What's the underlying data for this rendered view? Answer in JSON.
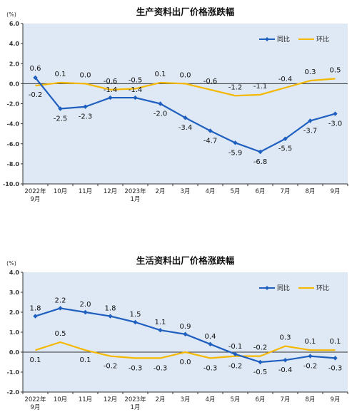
{
  "chart_data": [
    {
      "type": "line",
      "title": "生产资料出厂价格涨跌幅",
      "unit_label": "(%)",
      "categories": [
        [
          "2022年",
          "9月"
        ],
        [
          "10月"
        ],
        [
          "11月"
        ],
        [
          "12月"
        ],
        [
          "2023年",
          "1月"
        ],
        [
          "2月"
        ],
        [
          "3月"
        ],
        [
          "4月"
        ],
        [
          "5月"
        ],
        [
          "6月"
        ],
        [
          "7月"
        ],
        [
          "8月"
        ],
        [
          "9月"
        ]
      ],
      "ylim": [
        -10,
        6
      ],
      "yticks": [
        6,
        4,
        2,
        0,
        -2,
        -4,
        -6,
        -8,
        -10
      ],
      "ytick_labels": [
        "6.0",
        "4.0",
        "2.0",
        "0.0",
        "-2.0",
        "-4.0",
        "-6.0",
        "-8.0",
        "-10.0"
      ],
      "legend_position": "top-right",
      "series": [
        {
          "name": "同比",
          "color": "#1f5fbf",
          "marker": "diamond",
          "values": [
            0.6,
            -2.5,
            -2.3,
            -1.4,
            -1.4,
            -2.0,
            -3.4,
            -4.7,
            -5.9,
            -6.8,
            -5.5,
            -3.7,
            -3.0
          ],
          "labels": [
            "0.6",
            "-2.5",
            "-2.3",
            "-1.4",
            "-1.4",
            "-2.0",
            "-3.4",
            "-4.7",
            "-5.9",
            "-6.8",
            "-5.5",
            "-3.7",
            "-3.0"
          ]
        },
        {
          "name": "环比",
          "color": "#f5b800",
          "marker": "none",
          "values": [
            -0.2,
            0.1,
            0.0,
            -0.6,
            -0.5,
            0.1,
            0.0,
            -0.6,
            -1.2,
            -1.1,
            -0.4,
            0.3,
            0.5
          ],
          "labels": [
            "-0.2",
            "0.1",
            "0.0",
            "-0.6",
            "-0.5",
            "0.1",
            "0.0",
            "-0.6",
            "-1.2",
            "-1.1",
            "-0.4",
            "0.3",
            "0.5"
          ]
        }
      ]
    },
    {
      "type": "line",
      "title": "生活资料出厂价格涨跌幅",
      "unit_label": "(%)",
      "categories": [
        [
          "2022年",
          "9月"
        ],
        [
          "10月"
        ],
        [
          "11月"
        ],
        [
          "12月"
        ],
        [
          "2023年",
          "1月"
        ],
        [
          "2月"
        ],
        [
          "3月"
        ],
        [
          "4月"
        ],
        [
          "5月"
        ],
        [
          "6月"
        ],
        [
          "7月"
        ],
        [
          "8月"
        ],
        [
          "9月"
        ]
      ],
      "ylim": [
        -2,
        4
      ],
      "yticks": [
        4,
        3,
        2,
        1,
        0,
        -1,
        -2
      ],
      "ytick_labels": [
        "4.0",
        "3.0",
        "2.0",
        "1.0",
        "0.0",
        "-1.0",
        "-2.0"
      ],
      "legend_position": "top-right",
      "series": [
        {
          "name": "同比",
          "color": "#1f5fbf",
          "marker": "diamond",
          "values": [
            1.8,
            2.2,
            2.0,
            1.8,
            1.5,
            1.1,
            0.9,
            0.4,
            -0.1,
            -0.5,
            -0.4,
            -0.2,
            -0.3
          ],
          "labels": [
            "1.8",
            "2.2",
            "2.0",
            "1.8",
            "1.5",
            "1.1",
            "0.9",
            "0.4",
            "-0.1",
            "-0.5",
            "-0.4",
            "-0.2",
            "-0.3"
          ]
        },
        {
          "name": "环比",
          "color": "#f5b800",
          "marker": "none",
          "values": [
            0.1,
            0.5,
            0.1,
            -0.2,
            -0.3,
            -0.3,
            0.0,
            -0.3,
            -0.2,
            -0.2,
            0.3,
            0.1,
            0.1
          ],
          "labels": [
            "0.1",
            "0.5",
            "0.1",
            "-0.2",
            "-0.3",
            "-0.3",
            "0.0",
            "-0.3",
            "-0.2",
            "-0.2",
            "0.3",
            "0.1",
            "0.1"
          ]
        }
      ]
    }
  ]
}
